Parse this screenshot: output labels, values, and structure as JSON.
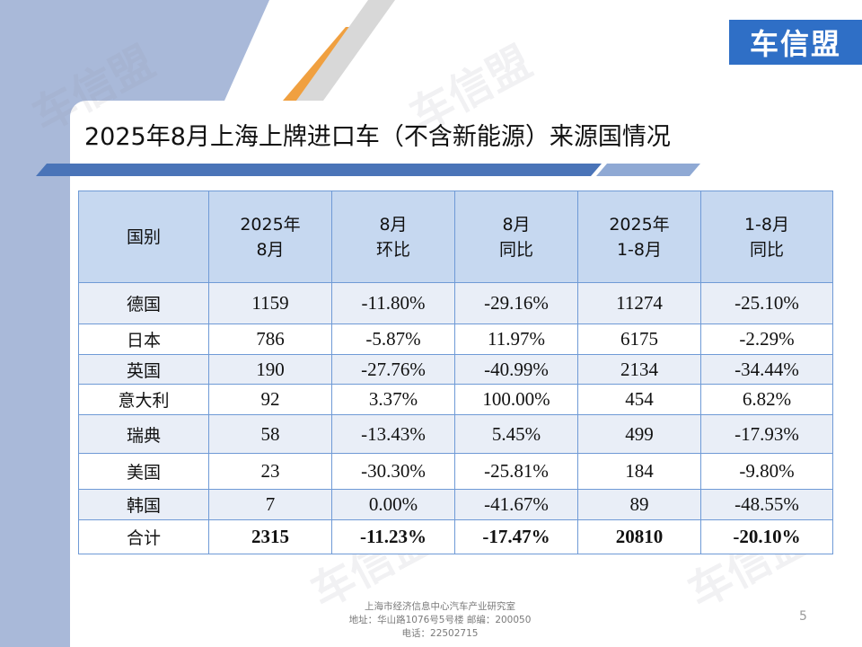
{
  "brand": {
    "logo_text": "车信盟",
    "watermark_text": "车信盟",
    "colors": {
      "logo_bg": "#2f6fc6",
      "header_bg": "#c6d8f0",
      "alt_row_bg": "#e9eef7",
      "border": "#6f9ad6",
      "side_band": "#a9b9d9",
      "accent_orange": "#f0a040"
    }
  },
  "slide": {
    "title": "2025年8月上海上牌进口车（不含新能源）来源国情况",
    "page_number": "5"
  },
  "table": {
    "headers": [
      [
        "国别"
      ],
      [
        "2025年",
        "8月"
      ],
      [
        "8月",
        "环比"
      ],
      [
        "8月",
        "同比"
      ],
      [
        "2025年",
        "1-8月"
      ],
      [
        "1-8月",
        "同比"
      ]
    ],
    "rows": [
      {
        "country": "德国",
        "aug": "1159",
        "mom": "-11.80%",
        "yoy": "-29.16%",
        "ytd": "11274",
        "ytd_yoy": "-25.10%"
      },
      {
        "country": "日本",
        "aug": "786",
        "mom": "-5.87%",
        "yoy": "11.97%",
        "ytd": "6175",
        "ytd_yoy": "-2.29%"
      },
      {
        "country": "英国",
        "aug": "190",
        "mom": "-27.76%",
        "yoy": "-40.99%",
        "ytd": "2134",
        "ytd_yoy": "-34.44%"
      },
      {
        "country": "意大利",
        "aug": "92",
        "mom": "3.37%",
        "yoy": "100.00%",
        "ytd": "454",
        "ytd_yoy": "6.82%"
      },
      {
        "country": "瑞典",
        "aug": "58",
        "mom": "-13.43%",
        "yoy": "5.45%",
        "ytd": "499",
        "ytd_yoy": "-17.93%"
      },
      {
        "country": "美国",
        "aug": "23",
        "mom": "-30.30%",
        "yoy": "-25.81%",
        "ytd": "184",
        "ytd_yoy": "-9.80%"
      },
      {
        "country": "韩国",
        "aug": "7",
        "mom": "0.00%",
        "yoy": "-41.67%",
        "ytd": "89",
        "ytd_yoy": "-48.55%"
      }
    ],
    "total": {
      "country": "合计",
      "aug": "2315",
      "mom": "-11.23%",
      "yoy": "-17.47%",
      "ytd": "20810",
      "ytd_yoy": "-20.10%"
    }
  },
  "footer": {
    "line1": "上海市经济信息中心汽车产业研究室",
    "line2": "地址：华山路1076号5号楼   邮编：200050",
    "line3": "电话：22502715"
  }
}
